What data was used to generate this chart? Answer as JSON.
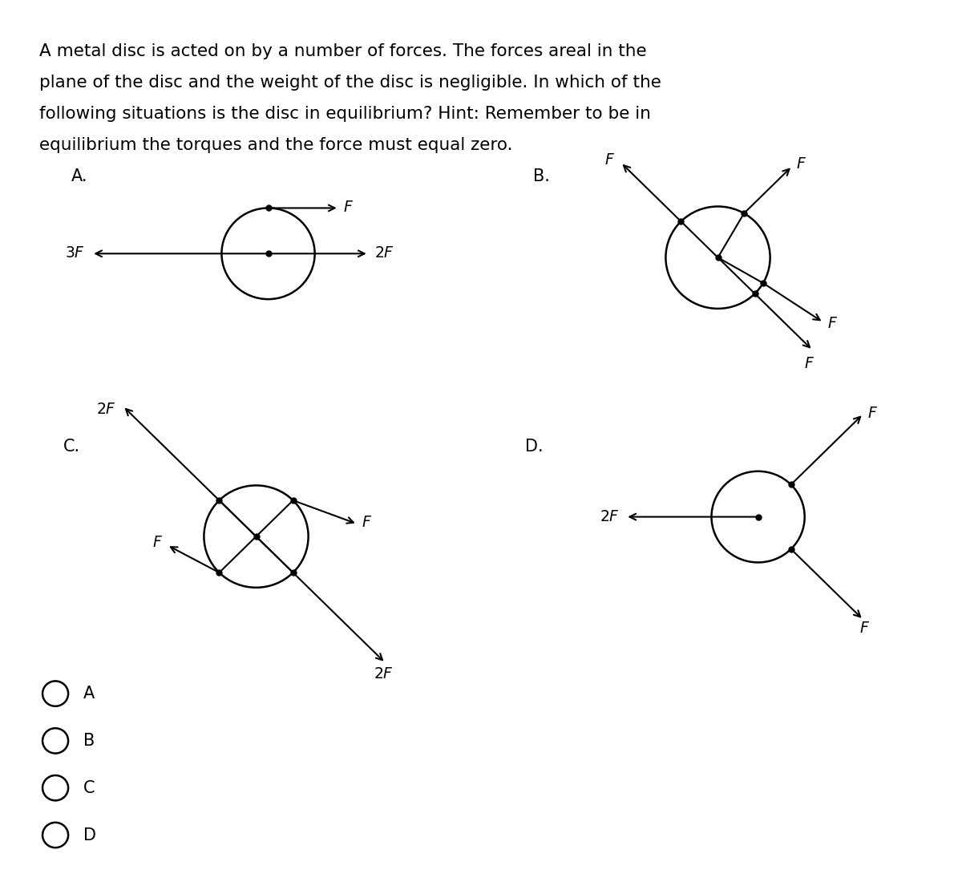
{
  "bg_color": "#ffffff",
  "text_color": "#000000",
  "title_lines": [
    "A metal disc is acted on by a number of forces. The forces areal in the",
    "plane of the disc and the weight of the disc is negligible. In which of the",
    "following situations is the disc in equilibrium? Hint: Remember to be in",
    "equilibrium the torques and the force must equal zero."
  ],
  "radio_options": [
    "A",
    "B",
    "C",
    "D"
  ],
  "font_size_title": 15.5,
  "font_size_label": 15,
  "font_size_force": 13.5
}
